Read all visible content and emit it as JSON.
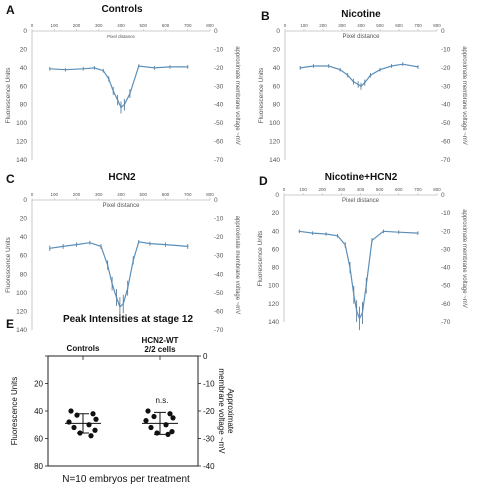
{
  "chart_data": [
    {
      "type": "line",
      "panel_letter": "A",
      "title": "Controls",
      "xlabel": "Pixel distance",
      "ylabel": "Fluorescence Units",
      "ylabel_right": "approximate membrane voltage ~mV",
      "xlim": [
        0,
        800
      ],
      "ylim": [
        0,
        140
      ],
      "y2lim": [
        0,
        -70
      ],
      "x_ticks": [
        0,
        100,
        200,
        300,
        400,
        500,
        600,
        700,
        800
      ],
      "y_ticks": [
        0,
        20,
        40,
        60,
        80,
        100,
        120,
        140
      ],
      "y2_ticks": [
        0,
        -10,
        -20,
        -30,
        -40,
        -50,
        -60,
        -70
      ],
      "x": [
        80,
        150,
        230,
        280,
        320,
        345,
        365,
        385,
        400,
        415,
        440,
        480,
        550,
        620,
        700
      ],
      "y": [
        41,
        42,
        41,
        40,
        43,
        52,
        65,
        75,
        83,
        80,
        68,
        38,
        40,
        39,
        39
      ]
    },
    {
      "type": "line",
      "panel_letter": "B",
      "title": "Nicotine",
      "xlabel": "Pixel distance",
      "ylabel": "Fluorescence Units",
      "ylabel_right": "approximate membrane voltage ~mV",
      "xlim": [
        0,
        800
      ],
      "ylim": [
        0,
        140
      ],
      "y2lim": [
        0,
        -70
      ],
      "x_ticks": [
        0,
        100,
        200,
        300,
        400,
        500,
        600,
        700,
        800
      ],
      "y_ticks": [
        0,
        20,
        40,
        60,
        80,
        100,
        120,
        140
      ],
      "y2_ticks": [
        0,
        -10,
        -20,
        -30,
        -40,
        -50,
        -60,
        -70
      ],
      "x": [
        80,
        150,
        230,
        290,
        330,
        360,
        385,
        400,
        420,
        450,
        500,
        560,
        620,
        700
      ],
      "y": [
        40,
        38,
        38,
        42,
        48,
        55,
        58,
        60,
        56,
        48,
        42,
        38,
        36,
        39
      ]
    },
    {
      "type": "line",
      "panel_letter": "C",
      "title": "HCN2",
      "xlabel": "Pixel distance",
      "ylabel": "Fluorescence Units",
      "ylabel_right": "approximate membrane voltage ~mV",
      "xlim": [
        0,
        800
      ],
      "ylim": [
        0,
        140
      ],
      "y2lim": [
        0,
        -70
      ],
      "x_ticks": [
        0,
        100,
        200,
        300,
        400,
        500,
        600,
        700,
        800
      ],
      "y_ticks": [
        0,
        20,
        40,
        60,
        80,
        100,
        120,
        140
      ],
      "y2_ticks": [
        0,
        -10,
        -20,
        -30,
        -40,
        -50,
        -60,
        -70
      ],
      "x": [
        80,
        140,
        200,
        260,
        310,
        340,
        360,
        380,
        395,
        410,
        430,
        455,
        480,
        530,
        600,
        700
      ],
      "y": [
        52,
        50,
        48,
        46,
        50,
        70,
        90,
        105,
        115,
        112,
        95,
        65,
        45,
        47,
        48,
        50
      ]
    },
    {
      "type": "line",
      "panel_letter": "D",
      "title": "Nicotine+HCN2",
      "xlabel": "Pixel distance",
      "ylabel": "Fluorescence Units",
      "ylabel_right": "approximate membrane voltage ~mV",
      "xlim": [
        0,
        800
      ],
      "ylim": [
        0,
        140
      ],
      "y2lim": [
        0,
        -70
      ],
      "x_ticks": [
        0,
        100,
        200,
        300,
        400,
        500,
        600,
        700,
        800
      ],
      "y_ticks": [
        0,
        20,
        40,
        60,
        80,
        100,
        120,
        140
      ],
      "y2_ticks": [
        0,
        -10,
        -20,
        -30,
        -40,
        -50,
        -60,
        -70
      ],
      "x": [
        80,
        150,
        220,
        280,
        320,
        345,
        365,
        380,
        395,
        410,
        430,
        460,
        520,
        600,
        700
      ],
      "y": [
        40,
        42,
        43,
        45,
        55,
        80,
        110,
        128,
        136,
        130,
        100,
        50,
        40,
        41,
        42
      ]
    },
    {
      "type": "scatter",
      "panel_letter": "E",
      "title": "Peak Intensities at stage 12",
      "ylabel": "Fluorescence Units",
      "ylabel_right": "Approximate membrane voltage ~mV",
      "ylim": [
        0,
        80
      ],
      "y2lim": [
        0,
        -40
      ],
      "y_ticks": [
        0,
        20,
        40,
        60,
        80
      ],
      "y_tick_labels": [
        "",
        "20",
        "40",
        "60",
        "80"
      ],
      "y2_ticks": [
        0,
        -10,
        -20,
        -30,
        -40
      ],
      "categories": [
        "Controls",
        "HCN2-WT\n2/2 cells"
      ],
      "series": [
        {
          "values": [
            40,
            42,
            43,
            46,
            48,
            50,
            52,
            54,
            56,
            58
          ],
          "mean": 49,
          "sd": 7
        },
        {
          "values": [
            40,
            42,
            44,
            45,
            47,
            50,
            52,
            55,
            56,
            57
          ],
          "mean": 49,
          "sd": 8
        }
      ],
      "annotations": [
        "n.s."
      ],
      "footnote": "N=10 embryos per treatment"
    }
  ]
}
